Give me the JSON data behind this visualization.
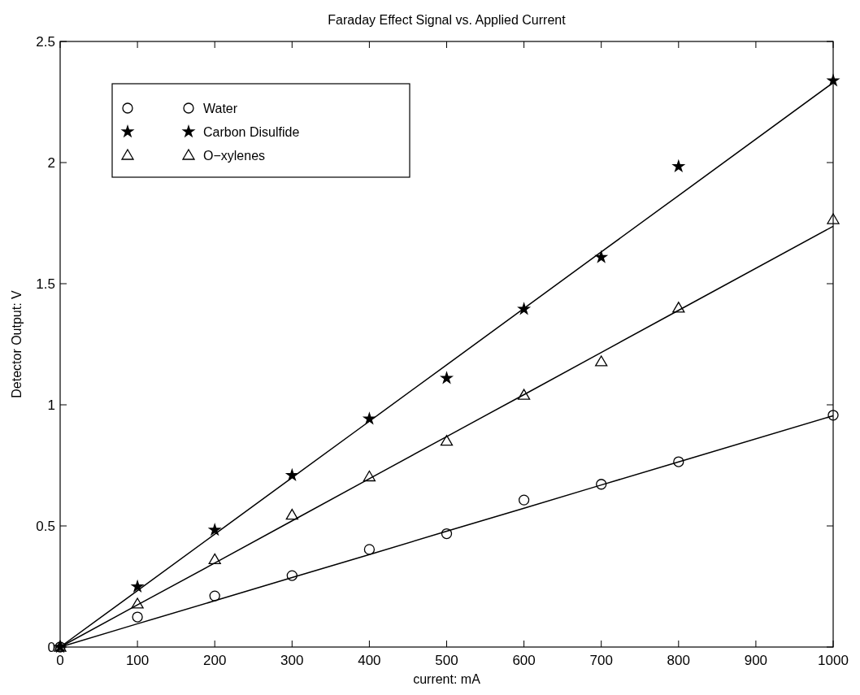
{
  "chart_data": {
    "type": "scatter",
    "title": "Faraday Effect Signal vs. Applied Current",
    "xlabel": "current: mA",
    "ylabel": "Detector Output: V",
    "x": [
      0,
      100,
      200,
      300,
      400,
      500,
      600,
      700,
      800,
      1000
    ],
    "series": [
      {
        "name": "Water",
        "color": "#000000",
        "marker": "circle",
        "values": [
          0,
          0.124,
          0.211,
          0.295,
          0.403,
          0.468,
          0.607,
          0.672,
          0.765,
          0.957
        ]
      },
      {
        "name": "Carbon Disulfide",
        "color": "#000000",
        "marker": "star",
        "values": [
          0,
          0.249,
          0.483,
          0.709,
          0.942,
          1.11,
          1.395,
          1.609,
          1.984,
          2.338
        ]
      },
      {
        "name": "O−xylenes",
        "color": "#000000",
        "marker": "triangle",
        "values": [
          0,
          0.178,
          0.361,
          0.545,
          0.703,
          0.85,
          1.04,
          1.178,
          1.4,
          1.765
        ]
      },
      {
        "type": "line",
        "color": "#000000",
        "marker": "none",
        "values": [
          0,
          0.096,
          0.191,
          0.287,
          0.382,
          0.478,
          0.573,
          0.669,
          0.764,
          0.955
        ]
      },
      {
        "type": "line",
        "color": "#000000",
        "marker": "none",
        "values": [
          0,
          0.233,
          0.466,
          0.699,
          0.932,
          1.165,
          1.398,
          1.631,
          1.864,
          2.33
        ]
      },
      {
        "type": "line",
        "color": "#000000",
        "marker": "none",
        "values": [
          0,
          0.174,
          0.347,
          0.521,
          0.695,
          0.869,
          1.042,
          1.216,
          1.39,
          1.737
        ]
      }
    ],
    "xlim": [
      0,
      1000
    ],
    "xticks": [
      0,
      100,
      200,
      300,
      400,
      500,
      600,
      700,
      800,
      900,
      1000
    ],
    "ylim": [
      0,
      2.5
    ],
    "yticks": [
      0,
      0.5,
      1,
      1.5,
      2,
      2.5
    ],
    "grid": false,
    "legend": "top left",
    "line_style": "solid"
  }
}
